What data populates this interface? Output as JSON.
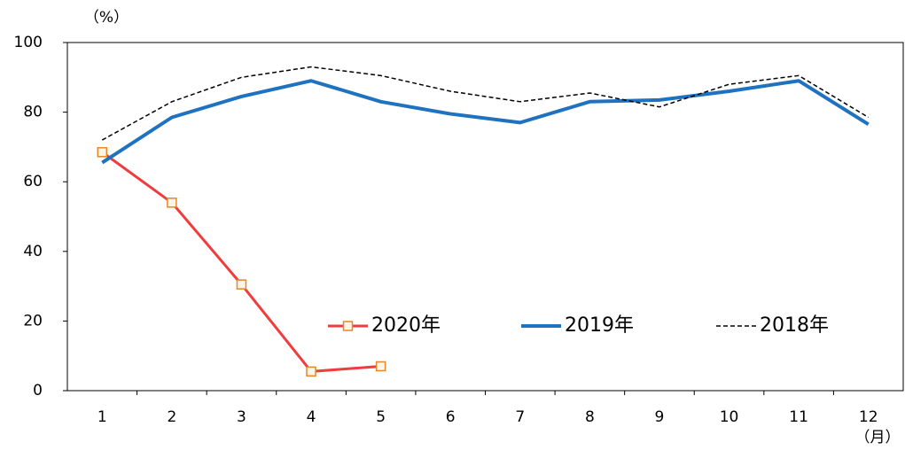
{
  "chart_data": {
    "type": "line",
    "ylabel": "（%）",
    "xlabel": "（月）",
    "categories": [
      "1",
      "2",
      "3",
      "4",
      "5",
      "6",
      "7",
      "8",
      "9",
      "10",
      "11",
      "12"
    ],
    "series": [
      {
        "name": "2020年",
        "color": "#f03c3c",
        "marker": "square",
        "marker_color": "#e8862a",
        "linestyle": "solid",
        "values": [
          68.5,
          54,
          30.5,
          5.5,
          7,
          null,
          null,
          null,
          null,
          null,
          null,
          null
        ]
      },
      {
        "name": "2019年",
        "color": "#1f72c0",
        "marker": "none",
        "linestyle": "solid",
        "values": [
          65.5,
          78.5,
          84.5,
          89,
          83,
          79.5,
          77,
          83,
          83.5,
          86,
          89,
          76.5
        ]
      },
      {
        "name": "2018年",
        "color": "#000000",
        "marker": "none",
        "linestyle": "dashed",
        "values": [
          72,
          83,
          90,
          93,
          90.5,
          86,
          83,
          85.5,
          81.5,
          88,
          90.5,
          78.5
        ]
      }
    ],
    "ylim": [
      0,
      100
    ],
    "yticks": [
      0,
      20,
      40,
      60,
      80,
      100
    ],
    "grid": false
  }
}
